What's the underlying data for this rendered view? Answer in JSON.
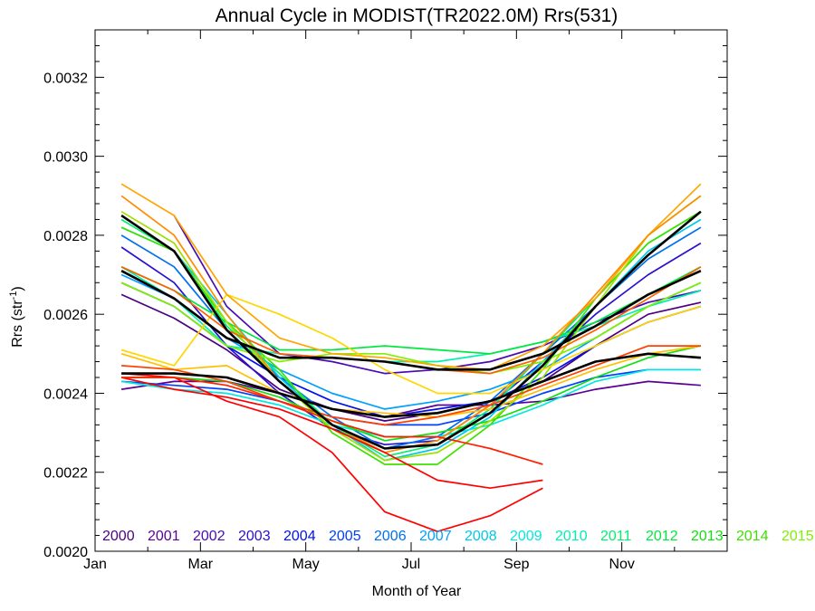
{
  "chart_data": {
    "type": "line",
    "title": "Annual Cycle in MODIST(TR2022.0M) Rrs(531)",
    "xlabel": "Month of Year",
    "ylabel": "Rrs (str",
    "ylabel_sup": "-1",
    "ylabel_close": ")",
    "xlim": [
      1,
      13
    ],
    "ylim": [
      0.002,
      0.00332
    ],
    "x_ticks": [
      {
        "value": 1,
        "label": "Jan"
      },
      {
        "value": 3,
        "label": "Mar"
      },
      {
        "value": 5,
        "label": "May"
      },
      {
        "value": 7,
        "label": "Jul"
      },
      {
        "value": 9,
        "label": "Sep"
      },
      {
        "value": 11,
        "label": "Nov"
      }
    ],
    "y_ticks": [
      {
        "value": 0.002,
        "label": "0.0020"
      },
      {
        "value": 0.0022,
        "label": "0.0022"
      },
      {
        "value": 0.0024,
        "label": "0.0024"
      },
      {
        "value": 0.0026,
        "label": "0.0026"
      },
      {
        "value": 0.0028,
        "label": "0.0028"
      },
      {
        "value": 0.003,
        "label": "0.0030"
      },
      {
        "value": 0.0032,
        "label": "0.0032"
      }
    ],
    "legend": [
      {
        "label": "2000",
        "color": "#4b0082"
      },
      {
        "label": "2001",
        "color": "#5a0096"
      },
      {
        "label": "2002",
        "color": "#4a0ab4"
      },
      {
        "label": "2003",
        "color": "#2a10d0"
      },
      {
        "label": "2004",
        "color": "#0010ee"
      },
      {
        "label": "2005",
        "color": "#0040ff"
      },
      {
        "label": "2006",
        "color": "#0070f0"
      },
      {
        "label": "2007",
        "color": "#00a0ff"
      },
      {
        "label": "2008",
        "color": "#00c8e8"
      },
      {
        "label": "2009",
        "color": "#00e8e0"
      },
      {
        "label": "2010",
        "color": "#00f0b0"
      },
      {
        "label": "2011",
        "color": "#00f070"
      },
      {
        "label": "2012",
        "color": "#00e840"
      },
      {
        "label": "2013",
        "color": "#10e010"
      },
      {
        "label": "2014",
        "color": "#40e000"
      },
      {
        "label": "2015",
        "color": "#80f000"
      }
    ],
    "x": [
      1.5,
      2.5,
      3.5,
      4.5,
      5.5,
      6.5,
      7.5,
      8.5,
      9.5,
      10.5,
      11.5,
      12.5
    ],
    "series": [
      {
        "color": "#4b0082",
        "values": [
          0.00265,
          0.00259,
          0.00251,
          0.00241,
          0.00236,
          0.00233,
          0.00235,
          0.00238,
          0.00243,
          0.00252,
          0.0026,
          0.00263
        ]
      },
      {
        "color": "#5a0096",
        "values": [
          0.00241,
          0.00243,
          0.00243,
          0.0024,
          0.00236,
          0.00234,
          0.00237,
          0.00237,
          0.00238,
          0.00241,
          0.00243,
          0.00242
        ]
      },
      {
        "color": "#4a0ab4",
        "values": [
          null,
          0.00285,
          0.00262,
          0.0025,
          0.00248,
          0.00245,
          0.00246,
          0.00248,
          0.00252,
          0.00258,
          0.00263,
          0.00266
        ]
      },
      {
        "color": "#2a10d0",
        "values": [
          0.00277,
          0.00268,
          0.00252,
          0.0024,
          0.00231,
          0.00227,
          0.00228,
          0.00237,
          0.00248,
          0.0026,
          0.0027,
          0.00278
        ]
      },
      {
        "color": "#0010ee",
        "values": [
          0.00268,
          0.00262,
          0.00252,
          0.00244,
          0.00238,
          0.00234,
          0.00236,
          0.00238,
          0.00244,
          0.00252,
          0.00258,
          0.00262
        ]
      },
      {
        "color": "#0040ff",
        "values": [
          0.00243,
          0.00242,
          0.00241,
          0.00238,
          0.00234,
          0.00232,
          0.00232,
          0.00235,
          0.0024,
          0.00244,
          0.00246,
          0.00246
        ]
      },
      {
        "color": "#0070f0",
        "values": [
          0.0028,
          0.00272,
          0.00256,
          0.00244,
          0.00234,
          0.00226,
          0.00229,
          0.00238,
          0.0025,
          0.00262,
          0.00274,
          0.00282
        ]
      },
      {
        "color": "#00a0ff",
        "values": [
          0.0027,
          0.00264,
          0.00254,
          0.00246,
          0.0024,
          0.00236,
          0.00238,
          0.00241,
          0.00246,
          0.00254,
          0.00262,
          0.00268
        ]
      },
      {
        "color": "#00c8e8",
        "values": [
          0.00282,
          0.00276,
          0.0026,
          0.00244,
          0.00232,
          0.00223,
          0.00226,
          0.00234,
          0.00248,
          0.00262,
          0.00276,
          0.00284
        ]
      },
      {
        "color": "#00e8e0",
        "values": [
          0.00243,
          0.00241,
          0.0024,
          0.00237,
          0.00232,
          0.00229,
          0.00229,
          0.00232,
          0.00237,
          0.00243,
          0.00246,
          0.00246
        ]
      },
      {
        "color": "#00f0b0",
        "values": [
          0.00272,
          0.00264,
          0.00252,
          0.0025,
          0.00249,
          0.00248,
          0.00248,
          0.0025,
          0.00253,
          0.00257,
          0.00262,
          0.00266
        ]
      },
      {
        "color": "#00f070",
        "values": [
          0.00284,
          0.00276,
          0.00257,
          0.00245,
          0.00232,
          0.00224,
          0.00227,
          0.00236,
          0.0025,
          0.00264,
          0.00278,
          0.00286
        ]
      },
      {
        "color": "#00e840",
        "values": [
          0.00272,
          0.00266,
          0.00258,
          0.00251,
          0.00251,
          0.00252,
          0.00251,
          0.0025,
          0.00253,
          0.00258,
          0.00265,
          0.00272
        ]
      },
      {
        "color": "#10e010",
        "values": [
          0.00244,
          0.00244,
          0.00243,
          0.00239,
          0.00233,
          0.00228,
          0.0023,
          0.00233,
          0.00238,
          0.00244,
          0.00249,
          0.00252
        ]
      },
      {
        "color": "#40e000",
        "values": [
          0.00282,
          0.00276,
          0.00258,
          0.00246,
          0.0023,
          0.00222,
          0.00222,
          0.00232,
          0.00246,
          0.00264,
          0.00278,
          0.00286
        ]
      },
      {
        "color": "#80f000",
        "values": [
          0.00268,
          0.00262,
          0.00252,
          0.00248,
          0.0025,
          0.0025,
          0.00247,
          0.00245,
          0.00248,
          0.00254,
          0.00262,
          0.00268
        ]
      },
      {
        "color": "#a0e000",
        "values": [
          0.00286,
          0.00278,
          0.00258,
          0.00243,
          0.00231,
          0.00223,
          0.00225,
          0.00233,
          0.00244,
          0.00262,
          0.0028,
          0.0029
        ]
      },
      {
        "color": "#ffd700",
        "values": [
          0.00251,
          0.00247,
          0.00265,
          0.0026,
          0.00254,
          0.00246,
          0.0024,
          0.0024,
          0.00246,
          0.00252,
          0.00258,
          0.00262
        ]
      },
      {
        "color": "#ffc000",
        "values": [
          0.0025,
          0.00246,
          0.00247,
          0.0024,
          0.00236,
          0.00235,
          0.00234,
          0.00236,
          0.00241,
          0.00246,
          0.0025,
          0.00252
        ]
      },
      {
        "color": "#ffa500",
        "values": [
          0.00293,
          0.00285,
          0.00265,
          0.00254,
          0.0025,
          0.00249,
          0.00247,
          0.00246,
          0.00252,
          0.00264,
          0.0028,
          0.00293
        ]
      },
      {
        "color": "#ff8c00",
        "values": [
          0.0029,
          0.0028,
          0.0026,
          0.00243,
          0.00232,
          0.00225,
          0.00228,
          0.00237,
          0.0025,
          0.00265,
          0.0028,
          0.0029
        ]
      },
      {
        "color": "#ff6000",
        "values": [
          0.00272,
          0.00266,
          0.00256,
          0.0025,
          0.00249,
          0.00248,
          0.00246,
          0.00245,
          0.00249,
          0.00256,
          0.00264,
          0.00272
        ]
      },
      {
        "color": "#ff4000",
        "values": [
          0.00247,
          0.00246,
          0.00243,
          0.00238,
          0.00234,
          0.00232,
          0.00234,
          0.00237,
          0.00242,
          0.00247,
          0.00252,
          0.00252
        ]
      },
      {
        "color": "#ff0000",
        "values": [
          0.00245,
          0.00244,
          0.00238,
          0.00234,
          0.00225,
          0.0021,
          0.00205,
          0.00209,
          0.00216,
          null,
          null,
          null
        ]
      },
      {
        "color": "#ff0000",
        "values": [
          0.00244,
          0.00241,
          0.00239,
          0.00236,
          0.00231,
          0.00225,
          0.00218,
          0.00216,
          0.00218,
          null,
          null,
          null
        ]
      },
      {
        "color": "#ff2000",
        "values": [
          0.00244,
          0.00244,
          0.00242,
          0.00238,
          0.00233,
          0.00229,
          0.00229,
          0.00226,
          0.00222,
          null,
          null,
          null
        ]
      },
      {
        "color": "#000000",
        "width": 2.6,
        "values": [
          0.00285,
          0.00276,
          0.00256,
          0.00243,
          0.00232,
          0.00226,
          0.00227,
          0.00235,
          0.00247,
          0.00262,
          0.00275,
          0.00286
        ]
      },
      {
        "color": "#000000",
        "width": 2.6,
        "values": [
          0.00271,
          0.00264,
          0.00254,
          0.00249,
          0.00249,
          0.00248,
          0.00246,
          0.00246,
          0.0025,
          0.00257,
          0.00265,
          0.00271
        ]
      },
      {
        "color": "#000000",
        "width": 2.6,
        "values": [
          0.00245,
          0.00245,
          0.00244,
          0.0024,
          0.00236,
          0.00234,
          0.00235,
          0.00238,
          0.00243,
          0.00248,
          0.0025,
          0.00249
        ]
      }
    ]
  }
}
